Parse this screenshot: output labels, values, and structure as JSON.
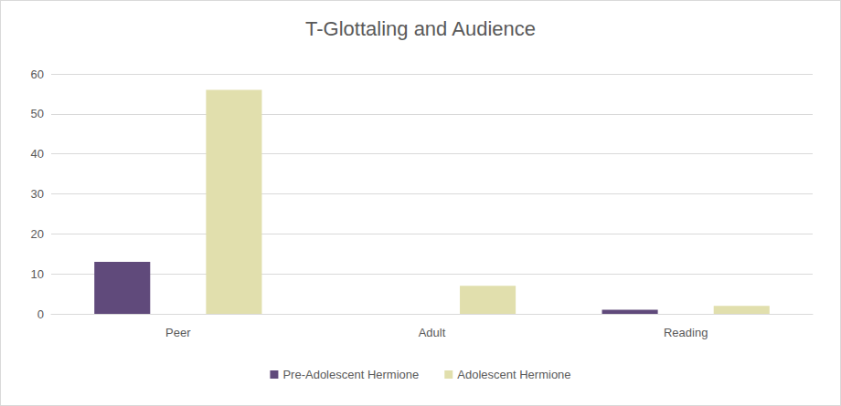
{
  "chart_data": {
    "type": "bar",
    "title": "T-Glottaling and Audience",
    "categories": [
      "Peer",
      "Adult",
      "Reading"
    ],
    "series": [
      {
        "name": "Pre-Adolescent Hermione",
        "color": "#604a7b",
        "values": [
          13,
          0,
          1
        ]
      },
      {
        "name": "Adolescent Hermione",
        "color": "#e1dfad",
        "values": [
          56,
          7,
          2
        ]
      }
    ],
    "ylim": [
      0,
      60
    ],
    "yticks": [
      0,
      10,
      20,
      30,
      40,
      50,
      60
    ],
    "grid": true,
    "legend": "bottom"
  }
}
